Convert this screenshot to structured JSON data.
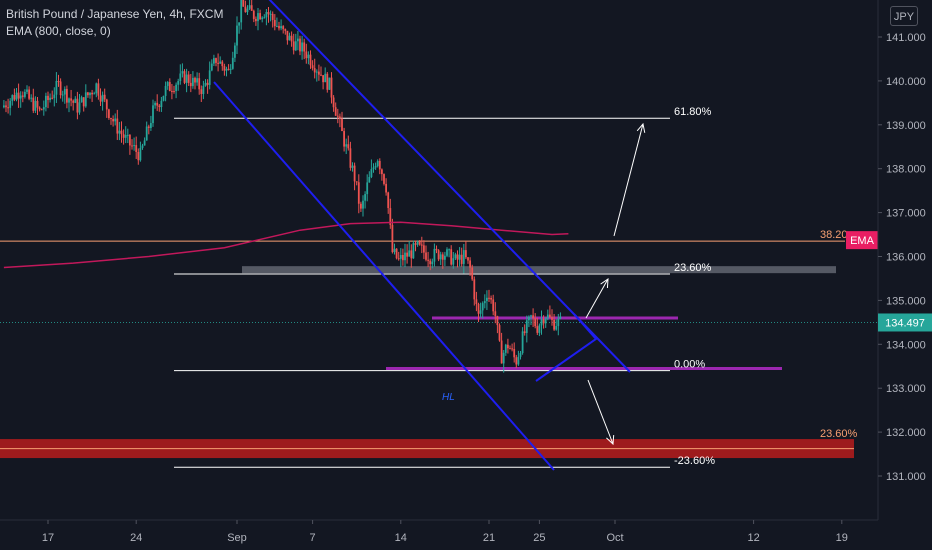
{
  "legend": {
    "symbol": "British Pound / Japanese Yen, 4h, FXCM",
    "indicator": "EMA (800, close, 0)"
  },
  "currency": "JPY",
  "colors": {
    "background": "#131722",
    "up": "#26a69a",
    "down": "#ef5350",
    "channel": "#1e1ef0",
    "ema": "#c2185b",
    "fib": "#ffffff",
    "purple": "#9c27b0",
    "grey_zone": "#5d606b",
    "red_zone": "#b71c1c",
    "orange": "#f7a072",
    "price_badge": "#26a69a",
    "ema_badge": "#e91e63"
  },
  "chart_data": {
    "type": "candlestick",
    "y_axis": {
      "range": [
        130.5,
        141.8
      ],
      "ticks": [
        "131.000",
        "132.000",
        "133.000",
        "134.000",
        "135.000",
        "136.000",
        "137.000",
        "138.000",
        "139.000",
        "140.000",
        "141.000"
      ]
    },
    "x_axis": {
      "ticks": [
        {
          "label": "17",
          "d": 0
        },
        {
          "label": "24",
          "d": 7
        },
        {
          "label": "Sep",
          "d": 15
        },
        {
          "label": "7",
          "d": 21
        },
        {
          "label": "14",
          "d": 28
        },
        {
          "label": "21",
          "d": 35
        },
        {
          "label": "25",
          "d": 39
        },
        {
          "label": "Oct",
          "d": 45
        },
        {
          "label": "12",
          "d": 56
        },
        {
          "label": "19",
          "d": 63
        }
      ]
    },
    "current_price": {
      "value": 134.497,
      "label": "134.497"
    },
    "ema_level": {
      "value": 136.35,
      "label": "EMA",
      "level_label": "38.20"
    },
    "fib_levels": [
      {
        "label": "61.80%",
        "value": 139.15
      },
      {
        "label": "23.60%",
        "value": 135.6
      },
      {
        "label": "0.00%",
        "value": 133.4
      },
      {
        "label": "-23.60%",
        "value": 131.2
      }
    ],
    "red_zone": {
      "from": 131.5,
      "to": 131.75,
      "label": "23.60%"
    },
    "annotation_hl": "HL",
    "ema_curve": [
      [
        -3.5,
        135.75
      ],
      [
        2,
        135.85
      ],
      [
        8,
        136.0
      ],
      [
        14,
        136.2
      ],
      [
        20,
        136.6
      ],
      [
        24,
        136.75
      ],
      [
        28,
        136.78
      ],
      [
        32,
        136.7
      ],
      [
        36,
        136.6
      ],
      [
        40,
        136.5
      ],
      [
        41.3,
        136.52
      ]
    ],
    "price_path": [
      [
        -3.5,
        139.4
      ],
      [
        -2,
        139.8
      ],
      [
        -0.5,
        139.3
      ],
      [
        1,
        139.9
      ],
      [
        2.5,
        139.4
      ],
      [
        4,
        139.9
      ],
      [
        5.5,
        139.0
      ],
      [
        6.5,
        138.6
      ],
      [
        7.5,
        138.3
      ],
      [
        8.5,
        139.3
      ],
      [
        9.5,
        139.8
      ],
      [
        11,
        140.1
      ],
      [
        12.5,
        139.8
      ],
      [
        13.5,
        140.5
      ],
      [
        14.5,
        140.2
      ],
      [
        15.5,
        141.7
      ],
      [
        16.5,
        141.5
      ],
      [
        17.5,
        141.6
      ],
      [
        18.5,
        141.2
      ],
      [
        19.5,
        140.9
      ],
      [
        20.5,
        140.7
      ],
      [
        21.5,
        140.3
      ],
      [
        22.5,
        139.9
      ],
      [
        23.5,
        138.8
      ],
      [
        24.5,
        137.8
      ],
      [
        25,
        137.0
      ],
      [
        25.5,
        137.6
      ],
      [
        26.3,
        138.3
      ],
      [
        27,
        137.6
      ],
      [
        27.5,
        136.1
      ],
      [
        28,
        135.9
      ],
      [
        28.5,
        136.0
      ],
      [
        29.5,
        136.2
      ],
      [
        30.5,
        136.0
      ],
      [
        31.5,
        136.1
      ],
      [
        32.5,
        135.9
      ],
      [
        33.2,
        136.0
      ],
      [
        33.7,
        135.7
      ],
      [
        34.3,
        134.6
      ],
      [
        35,
        135.2
      ],
      [
        35.6,
        134.8
      ],
      [
        36.1,
        133.7
      ],
      [
        36.7,
        134.0
      ],
      [
        37.3,
        133.6
      ],
      [
        37.9,
        134.2
      ],
      [
        38.5,
        134.6
      ],
      [
        39,
        134.4
      ],
      [
        39.6,
        134.7
      ],
      [
        40.2,
        134.5
      ],
      [
        40.7,
        134.5
      ]
    ]
  }
}
